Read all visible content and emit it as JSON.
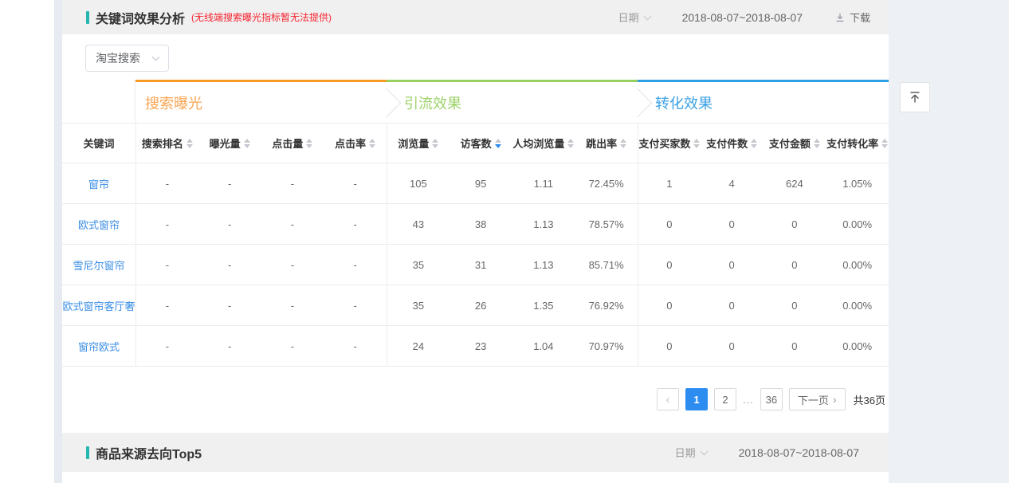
{
  "colors": {
    "accent_teal": "#25b6b0",
    "note_red": "#f5222d",
    "link_blue": "#3a8ee6",
    "active_blue": "#2d8cf0",
    "band_gray": "#f0f0f1"
  },
  "header": {
    "title": "关键词效果分析",
    "note": "(无线端搜索曝光指标暂无法提供)",
    "date_label": "日期",
    "date_range": "2018-08-07~2018-08-07",
    "download_label": "下载"
  },
  "toolbar": {
    "channel_select": "淘宝搜索"
  },
  "table": {
    "keyword_header": "关键词",
    "groups": [
      {
        "label": "搜索曝光",
        "border_color": "#f59a23",
        "text_color": "#f8a553"
      },
      {
        "label": "引流效果",
        "border_color": "#97d05f",
        "text_color": "#9ed36a"
      },
      {
        "label": "转化效果",
        "border_color": "#2e9fe5",
        "text_color": "#3ca2e6"
      }
    ],
    "columns": [
      {
        "label": "搜索排名",
        "sortable": true
      },
      {
        "label": "曝光量",
        "sortable": true
      },
      {
        "label": "点击量",
        "sortable": true
      },
      {
        "label": "点击率",
        "sortable": true
      },
      {
        "label": "浏览量",
        "sortable": true
      },
      {
        "label": "访客数",
        "sortable": true,
        "sorted": "desc"
      },
      {
        "label": "人均浏览量",
        "sortable": true
      },
      {
        "label": "跳出率",
        "sortable": true
      },
      {
        "label": "支付买家数",
        "sortable": true
      },
      {
        "label": "支付件数",
        "sortable": true
      },
      {
        "label": "支付金额",
        "sortable": true
      },
      {
        "label": "支付转化率",
        "sortable": true
      }
    ],
    "rows": [
      {
        "keyword": "窗帘",
        "values": [
          "-",
          "-",
          "-",
          "-",
          "105",
          "95",
          "1.11",
          "72.45%",
          "1",
          "4",
          "624",
          "1.05%"
        ]
      },
      {
        "keyword": "欧式窗帘",
        "values": [
          "-",
          "-",
          "-",
          "-",
          "43",
          "38",
          "1.13",
          "78.57%",
          "0",
          "0",
          "0",
          "0.00%"
        ]
      },
      {
        "keyword": "雪尼尔窗帘",
        "values": [
          "-",
          "-",
          "-",
          "-",
          "35",
          "31",
          "1.13",
          "85.71%",
          "0",
          "0",
          "0",
          "0.00%"
        ]
      },
      {
        "keyword": "欧式窗帘客厅奢",
        "values": [
          "-",
          "-",
          "-",
          "-",
          "35",
          "26",
          "1.35",
          "76.92%",
          "0",
          "0",
          "0",
          "0.00%"
        ]
      },
      {
        "keyword": "窗帘欧式",
        "values": [
          "-",
          "-",
          "-",
          "-",
          "24",
          "23",
          "1.04",
          "70.97%",
          "0",
          "0",
          "0",
          "0.00%"
        ]
      }
    ]
  },
  "pagination": {
    "prev_icon": "‹",
    "pages": [
      "1",
      "2",
      "...",
      "36"
    ],
    "active_page": "1",
    "next_label": "下一页",
    "next_icon": "›",
    "total_label": "共36页"
  },
  "footer_section": {
    "title": "商品来源去向Top5",
    "date_label": "日期",
    "date_range": "2018-08-07~2018-08-07"
  },
  "icons": {
    "date_filter": "chevron-down-icon",
    "channel_select": "chevron-down-icon",
    "download": "download-icon",
    "sort": "sort-caret-icon",
    "prev_page": "chevron-left-icon",
    "next_page": "chevron-right-icon",
    "back_to_top": "arrow-up-to-top-icon"
  }
}
